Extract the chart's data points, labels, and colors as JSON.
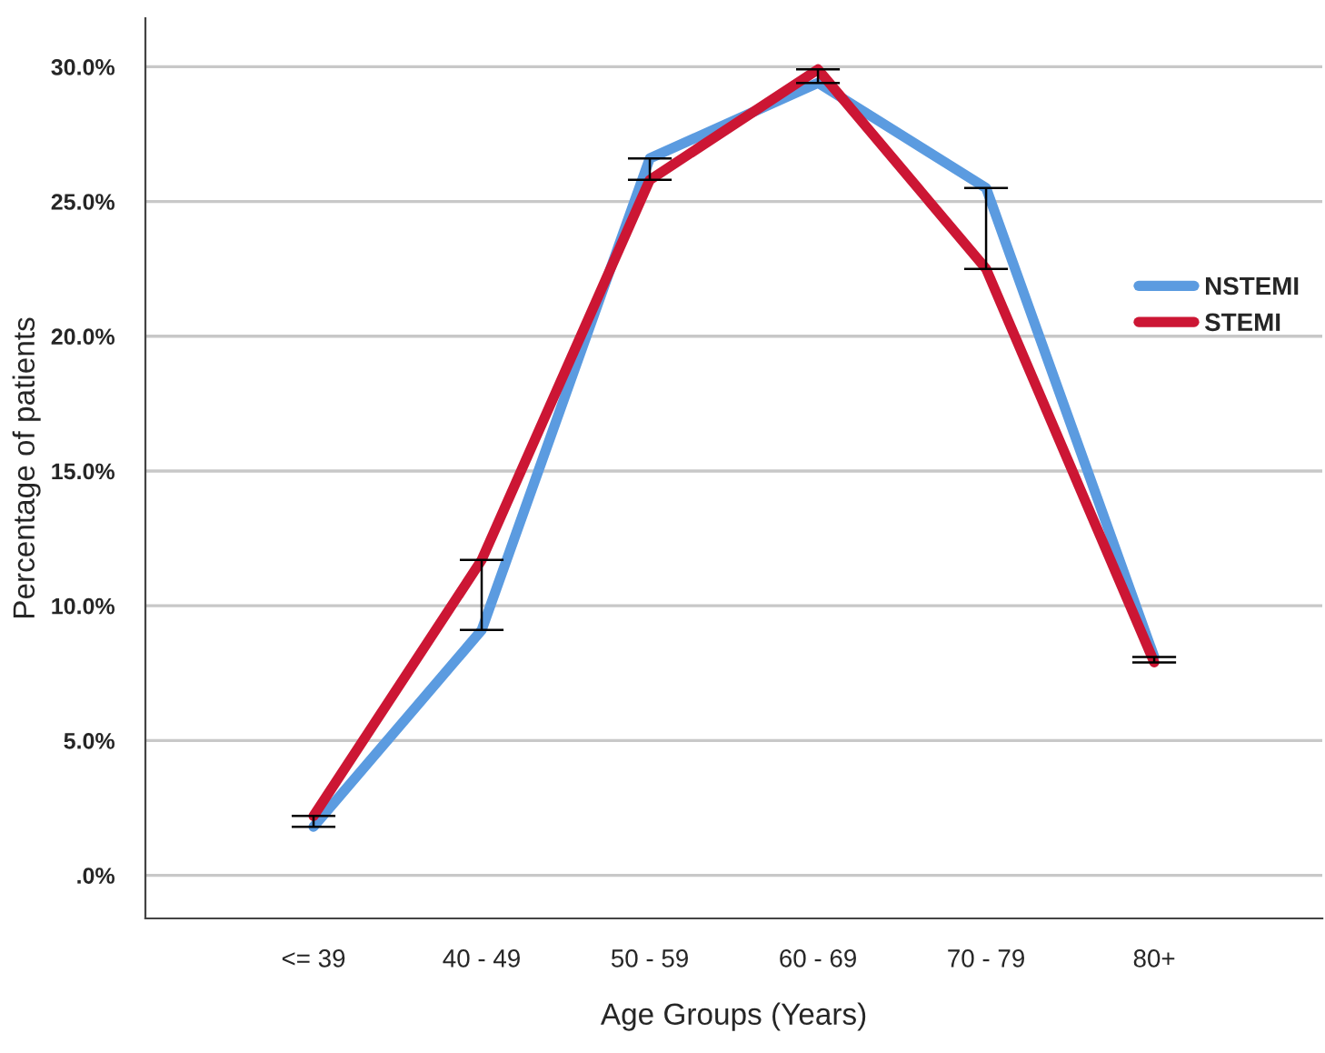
{
  "chart_data": {
    "type": "line",
    "xlabel": "Age Groups (Years)",
    "ylabel": "Percentage of patients",
    "categories": [
      "<= 39",
      "40 - 49",
      "50 - 59",
      "60 - 69",
      "70 - 79",
      "80+"
    ],
    "series": [
      {
        "name": "NSTEMI",
        "color": "#5b9be0",
        "values": [
          1.8,
          9.1,
          26.6,
          29.4,
          25.5,
          8.1
        ]
      },
      {
        "name": "STEMI",
        "color": "#cc1634",
        "values": [
          2.2,
          11.7,
          25.8,
          29.9,
          22.5,
          7.9
        ],
        "errors": [
          [
            1.8,
            2.2
          ],
          [
            9.1,
            11.7
          ],
          [
            25.8,
            26.6
          ],
          [
            29.4,
            29.9
          ],
          [
            22.5,
            25.5
          ],
          [
            7.9,
            8.1
          ]
        ]
      }
    ],
    "ylim": [
      -1.6,
      31.8
    ],
    "yticks": [
      {
        "value": 0,
        "label": ".0%"
      },
      {
        "value": 5,
        "label": "5.0%"
      },
      {
        "value": 10,
        "label": "10.0%"
      },
      {
        "value": 15,
        "label": "15.0%"
      },
      {
        "value": 20,
        "label": "20.0%"
      },
      {
        "value": 25,
        "label": "25.0%"
      },
      {
        "value": 30,
        "label": "30.0%"
      }
    ],
    "grid": "y",
    "legend": "right",
    "marker": "none",
    "line_style": "solid"
  }
}
